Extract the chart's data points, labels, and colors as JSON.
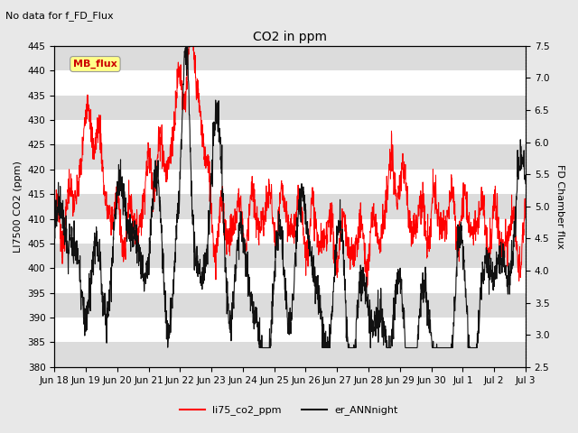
{
  "title": "CO2 in ppm",
  "subtitle": "No data for f_FD_Flux",
  "ylabel_left": "LI7500 CO2 (ppm)",
  "ylabel_right": "FD Chamber flux",
  "ylim_left": [
    380,
    445
  ],
  "ylim_right": [
    2.5,
    7.5
  ],
  "yticks_left": [
    380,
    385,
    390,
    395,
    400,
    405,
    410,
    415,
    420,
    425,
    430,
    435,
    440,
    445
  ],
  "yticks_right": [
    2.5,
    3.0,
    3.5,
    4.0,
    4.5,
    5.0,
    5.5,
    6.0,
    6.5,
    7.0,
    7.5
  ],
  "xtick_labels": [
    "Jun 18",
    "Jun 19",
    "Jun 20",
    "Jun 21",
    "Jun 22",
    "Jun 23",
    "Jun 24",
    "Jun 25",
    "Jun 26",
    "Jun 27",
    "Jun 28",
    "Jun 29",
    "Jun 30",
    "Jul 1",
    "Jul 2",
    "Jul 3"
  ],
  "color_red": "#ff0000",
  "color_black": "#111111",
  "legend_label_red": "li75_co2_ppm",
  "legend_label_black": "er_ANNnight",
  "mb_flux_box_color": "#ffff88",
  "mb_flux_text_color": "#cc0000",
  "background_color": "#e8e8e8",
  "plot_background": "#ffffff",
  "band_color": "#dcdcdc",
  "n_points": 2000,
  "x_max": 15.5
}
